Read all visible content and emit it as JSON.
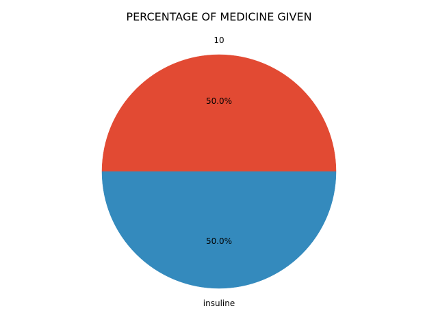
{
  "chart_data": {
    "type": "pie",
    "title": "PERCENTAGE OF MEDICINE GIVEN",
    "labels": [
      "10",
      "insuline"
    ],
    "values": [
      1,
      1
    ],
    "percent_labels": [
      "50.0%",
      "50.0%"
    ],
    "colors": [
      "#E24A33",
      "#348ABD"
    ],
    "start_angle": 0,
    "direction": "counterclockwise"
  }
}
